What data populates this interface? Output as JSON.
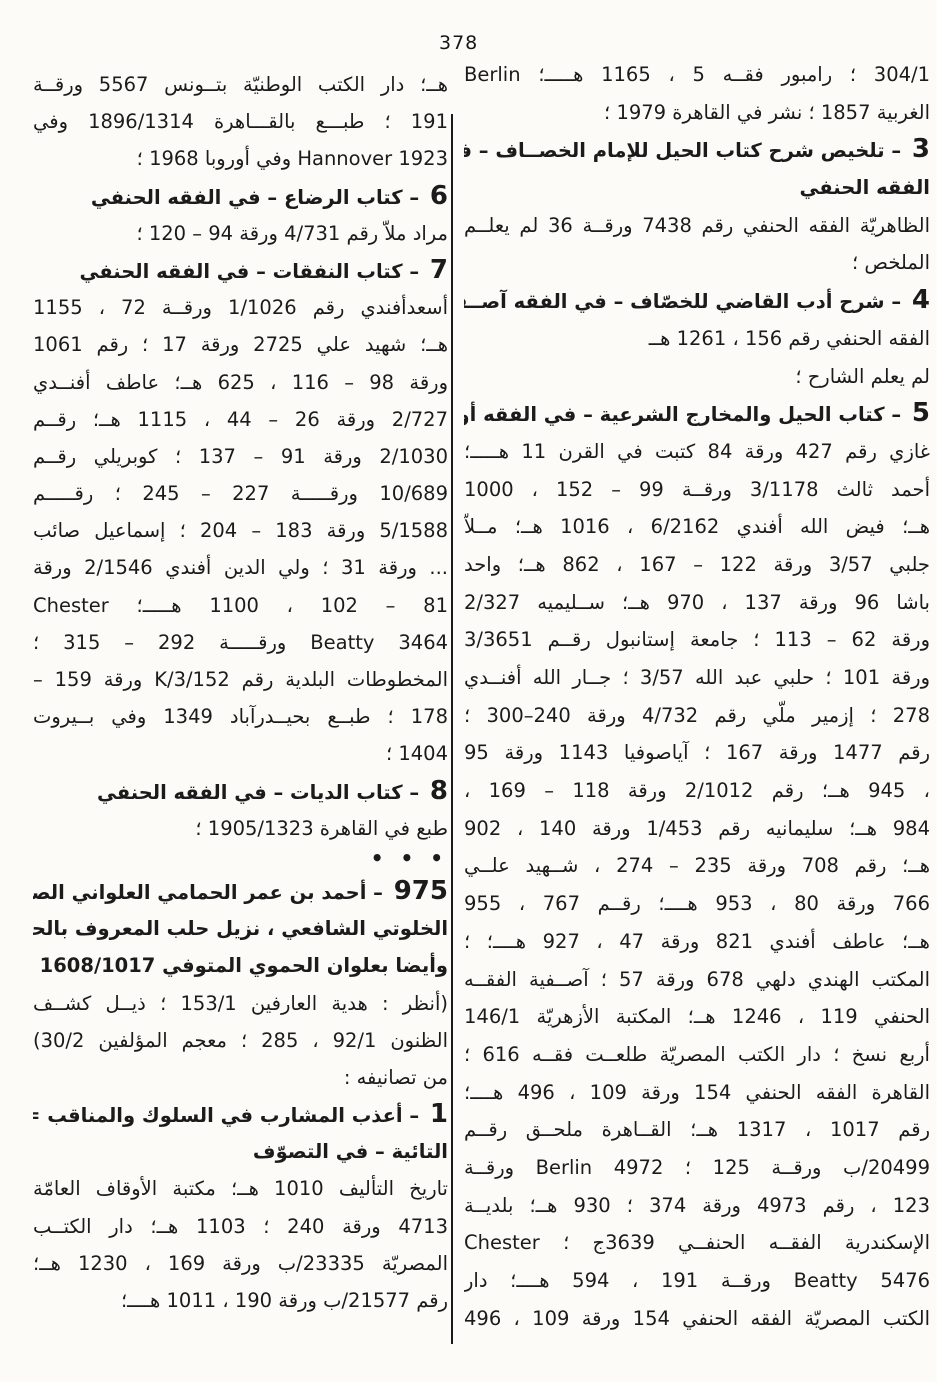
{
  "page": {
    "number": "378"
  },
  "ink_color": "#1b1b1b",
  "paper_color": "#fcfbf8",
  "columns": {
    "right": {
      "lines": [
        {
          "t": "304/1 ؛ رامبور فقــه 5 ، 1165 هـــــ؛ Berlin",
          "a": "j"
        },
        {
          "t": "الغربية 1857 ؛ نشر في القاهرة 1979 ؛",
          "a": "r"
        },
        {
          "num": "3",
          "t": "– تلخيص شرح كتاب الحيل للإمام الخصــاف – في",
          "a": "j",
          "b": true
        },
        {
          "t": "الفقه الحنفي",
          "a": "r",
          "b": true
        },
        {
          "t": "الظاهريّة الفقه الحنفي رقم 7438 ورقــة 36 لم يعلــم",
          "a": "j"
        },
        {
          "t": "الملخص ؛",
          "a": "r"
        },
        {
          "num": "4",
          "t": "– شرح أدب القاضي للخصّاف – في الفقه آصــفية",
          "a": "j",
          "b": true
        },
        {
          "t": "الفقه الحنفي رقم 156 ، 1261 هــ",
          "a": "r"
        },
        {
          "t": "لم يعلم الشارح ؛",
          "a": "ind"
        },
        {
          "num": "5",
          "t": "– كتاب الحيل والمخارج الشرعية – في الفقه أورخان",
          "a": "j",
          "b": true
        },
        {
          "t": "غازي رقم 427 ورقة 84 كتبت في القرن 11 هـــــ؛",
          "a": "j"
        },
        {
          "t": "أحمد ثالث 3/1178 ورقــة 99 – 152 ، 1000",
          "a": "j"
        },
        {
          "t": "هــ؛ فيض الله أفندي 6/2162 ، 1016 هــ؛ مــلاّ",
          "a": "j"
        },
        {
          "t": "جلبي 3/57 ورقة 122 – 167 ، 862 هــ؛ واحد",
          "a": "j"
        },
        {
          "t": "باشا 96 ورقة 137 ، 970 هــ؛ ســليميه 2/327",
          "a": "j"
        },
        {
          "t": "ورقة 62 – 113 ؛ جامعة إستانبول رقــم 3/3651",
          "a": "j"
        },
        {
          "t": "ورقة 101 ؛ حلبي عبد الله 3/57 ؛ جــار الله أفنــدي",
          "a": "j"
        },
        {
          "t": "278 ؛ إزمير ملّي رقم 4/732 ورقة 240–300 ؛",
          "a": "j"
        },
        {
          "t": "رقم 1477 ورقة 167 ؛ آياصوفيا 1143 ورقة 95",
          "a": "j"
        },
        {
          "t": "، 945 هــ؛ رقم 2/1012 ورقة 118 – 169 ،",
          "a": "j"
        },
        {
          "t": "984 هــ؛ سليمانيه رقم 1/453 ورقة 140 ، 902",
          "a": "j"
        },
        {
          "t": "هــ؛ رقم 708 ورقة 235 – 274 ، شــهيد علــي",
          "a": "j"
        },
        {
          "t": "766 ورقة 80 ، 953 هــــ؛ رقــم 767 ، 955",
          "a": "j"
        },
        {
          "t": "هــ؛ عاطف أفندي 821 ورقة 47 ، 927 هــــ؛ ؛",
          "a": "j"
        },
        {
          "t": "المكتب الهندي دلهي 678 ورقة 57 ؛ آصــفية الفقــه",
          "a": "j"
        },
        {
          "t": "الحنفي 119 ، 1246 هــ؛ المكتبة الأزهريّة 146/1",
          "a": "j"
        },
        {
          "t": "أربع نسخ ؛ دار الكتب المصريّة طلعــت فقــه 616 ؛",
          "a": "j"
        },
        {
          "t": "القاهرة الفقه الحنفي 154 ورقة 109 ، 496 هــــ؛",
          "a": "j"
        },
        {
          "t": "رقم 1017 ، 1317 هــ؛ القــاهرة ملحــق رقــم",
          "a": "j"
        },
        {
          "t": "20499/ب ورقــة 125 ؛ 4972 Berlin ورقــة",
          "a": "j"
        },
        {
          "t": "123 ، رقم 4973 ورقة 374 ؛ 930 هــ؛ بلديــة",
          "a": "j"
        },
        {
          "t": "الإسكندرية الفقــه الحنفــي 3639ج ؛ Chester",
          "a": "j"
        },
        {
          "t": "5476 Beatty ورقــة 191 ، 594 هــــ؛ دار",
          "a": "j"
        },
        {
          "t": "الكتب المصريّة الفقه الحنفي 154 ورقة 109 ، 496",
          "a": "j"
        }
      ]
    },
    "left": {
      "lines": [
        {
          "t": "هــ؛ دار الكتب الوطنيّة بتــونس 5567 ورقــة",
          "a": "j"
        },
        {
          "t": "191 ؛ طبـــع بالقـــاهرة 1896/1314 وفي",
          "a": "j"
        },
        {
          "t": "1923 Hannover وفي أوروبا 1968 ؛",
          "a": "r"
        },
        {
          "num": "6",
          "t": "– كتاب الرضاع – في الفقه الحنفي",
          "a": "r",
          "b": true
        },
        {
          "t": "مراد ملاّ رقم 4/731 ورقة 94 – 120 ؛",
          "a": "r"
        },
        {
          "num": "7",
          "t": "– كتاب النفقات – في الفقه الحنفي",
          "a": "r",
          "b": true
        },
        {
          "t": "أسعدأفندي رقم 1/1026 ورقــة 72 ، 1155",
          "a": "j"
        },
        {
          "t": "هــ؛ شهيد علي 2725 ورقة 17 ؛ رقم 1061",
          "a": "j"
        },
        {
          "t": "ورقة 98 – 116 ، 625 هــ؛ عاطف أفنــدي",
          "a": "j"
        },
        {
          "t": "2/727 ورقة 26 – 44 ، 1115 هــ؛ رقــم",
          "a": "j"
        },
        {
          "t": "2/1030 ورقة 91 – 137 ؛ كوبريلي رقــم",
          "a": "j"
        },
        {
          "t": "10/689 ورقـــــة 227 – 245 ؛ رقـــــم",
          "a": "j"
        },
        {
          "t": "5/1588 ورقة 183 – 204 ؛ إسماعيل صائب",
          "a": "j"
        },
        {
          "t": "... ورقة 31 ؛ ولي الدين أفندي 2/1546 ورقة",
          "a": "j"
        },
        {
          "t": "81 – 102 ، 1100 هـــــ؛ Chester",
          "a": "j"
        },
        {
          "t": "3464 Beatty ورقـــــة 292 – 315 ؛",
          "a": "j"
        },
        {
          "t": "المخطوطات البلدية رقم 3/152/K ورقة 159 –",
          "a": "j"
        },
        {
          "t": "178 ؛ طبــع بحيــدرآباد 1349 وفي بــيروت",
          "a": "j"
        },
        {
          "t": "1404 ؛",
          "a": "r"
        },
        {
          "num": "8",
          "t": "– كتاب الديات – في الفقه الحنفي",
          "a": "r",
          "b": true
        },
        {
          "t": "طبع في القاهرة 1905/1323 ؛",
          "a": "r"
        },
        {
          "t": "• • •",
          "a": "dots",
          "b": true
        },
        {
          "num": "975",
          "t": "– أحمد بن عمر الحمامي العلواني الصــوفي",
          "a": "j",
          "b": true
        },
        {
          "t": "الخلوتي الشافعي ، نزيل حلب المعروف بالحمــامي",
          "a": "j",
          "b": true
        },
        {
          "t": "وأيضا بعلوان الحموي المتوفي 1608/1017",
          "a": "r",
          "b": true
        },
        {
          "t": "(أنظر : هدية العارفين 153/1 ؛ ذيــل كشــف",
          "a": "j"
        },
        {
          "t": "الظنون 92/1 ، 285 ؛ معجم المؤلفين 30/2)",
          "a": "j"
        },
        {
          "t": "من تصانيفه :",
          "a": "r"
        },
        {
          "num": "1",
          "t": "– أعذب المشارب في السلوك والمناقب = شرح",
          "a": "j",
          "b": true
        },
        {
          "t": "التائية – في التصوّف",
          "a": "r",
          "b": true
        },
        {
          "t": "تاريخ التأليف 1010 هــ؛ مكتبة الأوقاف العامّة",
          "a": "j"
        },
        {
          "t": "4713 ورقة 240 ؛ 1103 هــ؛ دار الكتــب",
          "a": "j"
        },
        {
          "t": "المصريّة 23335/ب ورقة 169 ، 1230 هــ؛",
          "a": "j"
        },
        {
          "t": "رقم 21577/ب ورقة 190 ، 1011 هــــ؛",
          "a": "r"
        }
      ]
    }
  }
}
